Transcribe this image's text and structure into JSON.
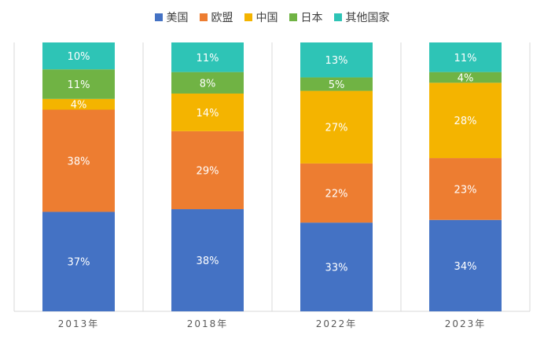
{
  "chart_data": {
    "type": "bar",
    "stacked": true,
    "percent": true,
    "categories": [
      "2013年",
      "2018年",
      "2022年",
      "2023年"
    ],
    "series": [
      {
        "name": "美国",
        "color": "#4472C4",
        "values": [
          37,
          38,
          33,
          34
        ],
        "labels": [
          "37%",
          "38%",
          "33%",
          "34%"
        ]
      },
      {
        "name": "欧盟",
        "color": "#ED7D31",
        "values": [
          38,
          29,
          22,
          23
        ],
        "labels": [
          "38%",
          "29%",
          "22%",
          "23%"
        ]
      },
      {
        "name": "中国",
        "color": "#F4B400",
        "values": [
          4,
          14,
          27,
          28
        ],
        "labels": [
          "4%",
          "14%",
          "27%",
          "28%"
        ]
      },
      {
        "name": "日本",
        "color": "#70B344",
        "values": [
          11,
          8,
          5,
          4
        ],
        "labels": [
          "11%",
          "8%",
          "5%",
          "4%"
        ]
      },
      {
        "name": "其他国家",
        "color": "#2EC4B6",
        "values": [
          10,
          11,
          13,
          11
        ],
        "labels": [
          "10%",
          "11%",
          "13%",
          "11%"
        ]
      }
    ],
    "ylim": [
      0,
      100
    ],
    "title": "",
    "xlabel": "",
    "ylabel": "",
    "legend_position": "top-center",
    "grid": false
  }
}
